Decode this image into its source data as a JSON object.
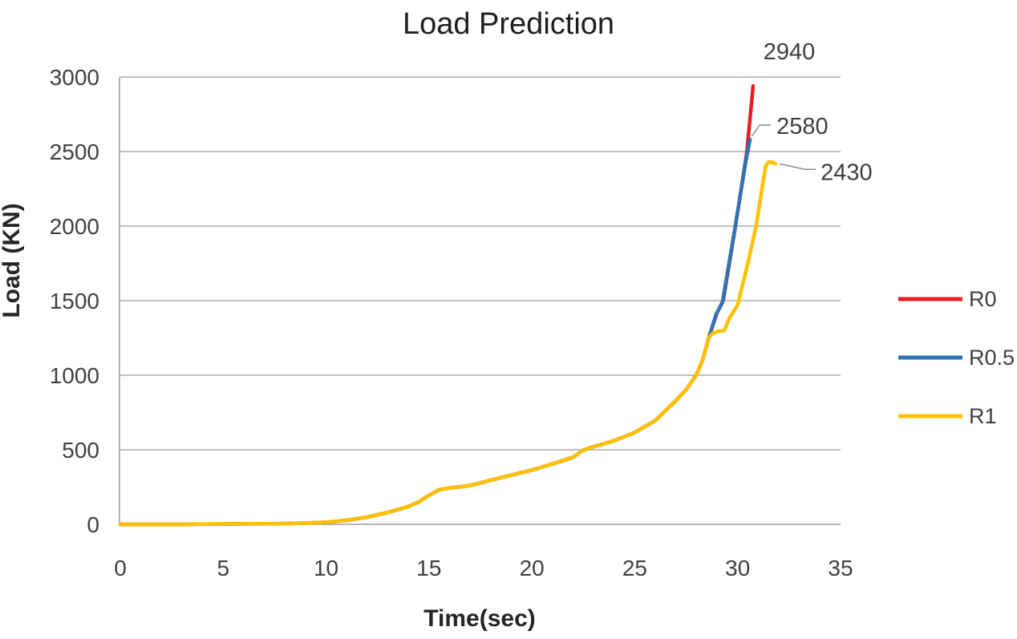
{
  "chart_data": {
    "type": "line",
    "title": "Load Prediction",
    "xlabel": "Time(sec)",
    "ylabel": "Load (KN)",
    "xlim": [
      0,
      35
    ],
    "ylim": [
      0,
      3000
    ],
    "xticks": [
      0,
      5,
      10,
      15,
      20,
      25,
      30,
      35
    ],
    "yticks": [
      0,
      500,
      1000,
      1500,
      2000,
      2500,
      3000
    ],
    "grid": "horizontal-only",
    "gridline_color": "#ABABAB",
    "axis_line_color": "#9B9B9B",
    "legend_position": "right-middle",
    "series": [
      {
        "name": "R0",
        "color": "#E31E23",
        "end_label": "2940",
        "points": [
          [
            0,
            0
          ],
          [
            1,
            0
          ],
          [
            2,
            0
          ],
          [
            3,
            0
          ],
          [
            4,
            1
          ],
          [
            5,
            2
          ],
          [
            6,
            3
          ],
          [
            7,
            4
          ],
          [
            8,
            5
          ],
          [
            9,
            8
          ],
          [
            10,
            14
          ],
          [
            10.5,
            20
          ],
          [
            11,
            28
          ],
          [
            12,
            48
          ],
          [
            13,
            80
          ],
          [
            14,
            120
          ],
          [
            14.5,
            150
          ],
          [
            15,
            195
          ],
          [
            15.5,
            233
          ],
          [
            16,
            244
          ],
          [
            17,
            260
          ],
          [
            18,
            296
          ],
          [
            19,
            330
          ],
          [
            20,
            364
          ],
          [
            21,
            405
          ],
          [
            22,
            450
          ],
          [
            22.5,
            498
          ],
          [
            23,
            521
          ],
          [
            24,
            561
          ],
          [
            25,
            616
          ],
          [
            26,
            696
          ],
          [
            27,
            830
          ],
          [
            27.5,
            903
          ],
          [
            28,
            1005
          ],
          [
            28.3,
            1103
          ],
          [
            28.6,
            1253
          ],
          [
            29,
            1420
          ],
          [
            29.3,
            1502
          ],
          [
            29.9,
            2003
          ],
          [
            30.45,
            2502
          ],
          [
            30.75,
            2940
          ]
        ]
      },
      {
        "name": "R0.5",
        "color": "#2E74B5",
        "end_label": "2580",
        "points": [
          [
            0,
            0
          ],
          [
            1,
            0
          ],
          [
            2,
            0
          ],
          [
            3,
            0
          ],
          [
            4,
            1
          ],
          [
            5,
            2
          ],
          [
            6,
            3
          ],
          [
            7,
            4
          ],
          [
            8,
            5
          ],
          [
            9,
            8
          ],
          [
            10,
            14
          ],
          [
            10.5,
            20
          ],
          [
            11,
            28
          ],
          [
            12,
            48
          ],
          [
            13,
            80
          ],
          [
            14,
            120
          ],
          [
            14.5,
            150
          ],
          [
            15,
            195
          ],
          [
            15.5,
            233
          ],
          [
            16,
            244
          ],
          [
            17,
            260
          ],
          [
            18,
            296
          ],
          [
            19,
            330
          ],
          [
            20,
            364
          ],
          [
            21,
            405
          ],
          [
            22,
            450
          ],
          [
            22.5,
            498
          ],
          [
            23,
            521
          ],
          [
            24,
            561
          ],
          [
            25,
            616
          ],
          [
            26,
            696
          ],
          [
            27,
            830
          ],
          [
            27.5,
            903
          ],
          [
            28,
            1005
          ],
          [
            28.3,
            1103
          ],
          [
            28.6,
            1253
          ],
          [
            28.95,
            1408
          ],
          [
            29.25,
            1483
          ],
          [
            29.85,
            1972
          ],
          [
            30.4,
            2438
          ],
          [
            30.6,
            2580
          ]
        ]
      },
      {
        "name": "R1",
        "color": "#FFC000",
        "end_label": "2430",
        "points": [
          [
            0,
            0
          ],
          [
            1,
            0
          ],
          [
            2,
            0
          ],
          [
            3,
            0
          ],
          [
            4,
            1
          ],
          [
            5,
            2
          ],
          [
            6,
            3
          ],
          [
            7,
            4
          ],
          [
            8,
            5
          ],
          [
            9,
            8
          ],
          [
            10,
            14
          ],
          [
            10.5,
            20
          ],
          [
            11,
            28
          ],
          [
            12,
            48
          ],
          [
            13,
            80
          ],
          [
            14,
            120
          ],
          [
            14.5,
            150
          ],
          [
            15,
            195
          ],
          [
            15.5,
            233
          ],
          [
            16,
            244
          ],
          [
            17,
            260
          ],
          [
            18,
            296
          ],
          [
            19,
            330
          ],
          [
            20,
            364
          ],
          [
            21,
            405
          ],
          [
            22,
            450
          ],
          [
            22.5,
            498
          ],
          [
            23,
            521
          ],
          [
            24,
            561
          ],
          [
            25,
            616
          ],
          [
            26,
            696
          ],
          [
            27,
            830
          ],
          [
            27.5,
            903
          ],
          [
            28,
            1005
          ],
          [
            28.3,
            1103
          ],
          [
            28.6,
            1253
          ],
          [
            28.8,
            1283
          ],
          [
            29.05,
            1294
          ],
          [
            29.35,
            1300
          ],
          [
            29.6,
            1383
          ],
          [
            30,
            1472
          ],
          [
            30.5,
            1753
          ],
          [
            30.9,
            2002
          ],
          [
            31.35,
            2398
          ],
          [
            31.5,
            2430
          ],
          [
            31.7,
            2428
          ],
          [
            31.85,
            2418
          ]
        ]
      }
    ]
  }
}
